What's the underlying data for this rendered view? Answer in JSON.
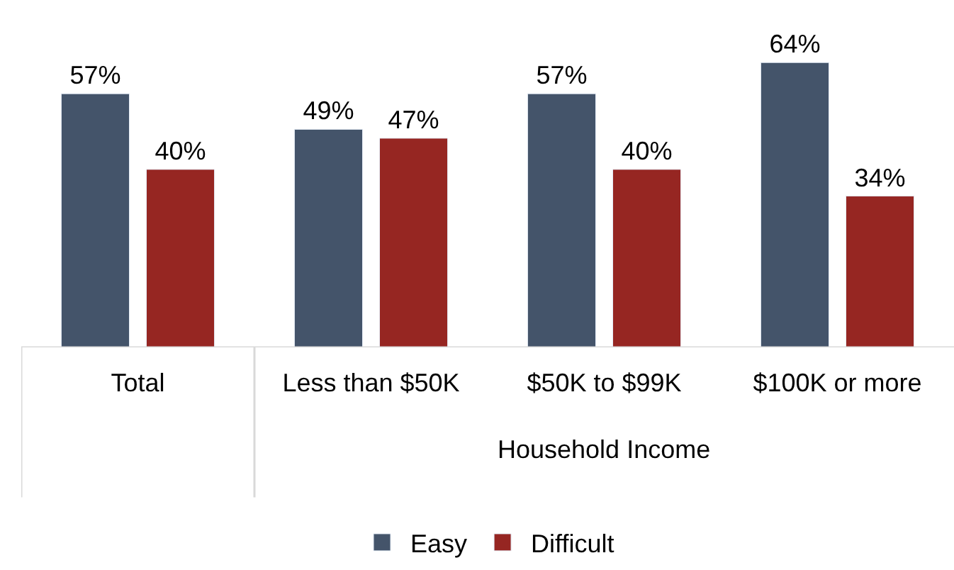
{
  "chart_data": {
    "type": "bar",
    "xlabel": "Household Income",
    "categories": [
      "Total",
      "Less than $50K",
      "$50K to $99K",
      "$100K or more"
    ],
    "series": [
      {
        "name": "Easy",
        "color": "#44546a",
        "values": [
          57,
          49,
          57,
          64
        ],
        "value_labels": [
          "57%",
          "49%",
          "57%",
          "64%"
        ]
      },
      {
        "name": "Difficult",
        "color": "#962622",
        "values": [
          40,
          47,
          40,
          34
        ],
        "value_labels": [
          "40%",
          "47%",
          "40%",
          "34%"
        ]
      }
    ],
    "legend": "bottom"
  }
}
